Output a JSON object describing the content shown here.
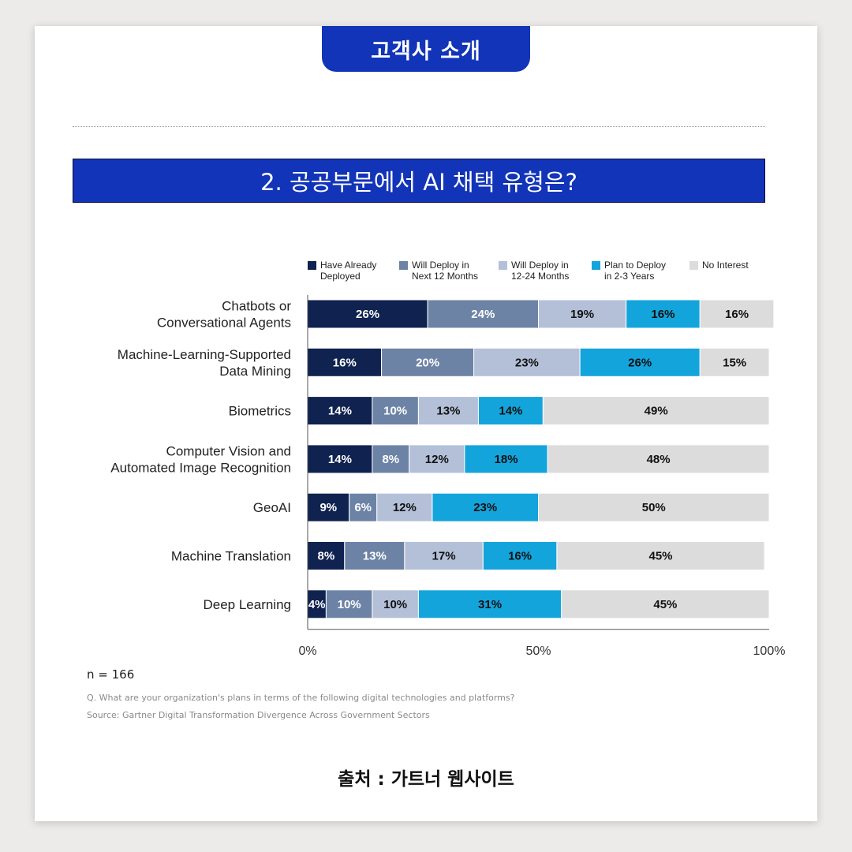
{
  "header": {
    "tab_label": "고객사 소개",
    "banner_title": "2. 공공부문에서 AI 채택 유형은?"
  },
  "chart_data": {
    "type": "bar",
    "orientation": "horizontal",
    "stacked": true,
    "categories": [
      "Chatbots or\nConversational Agents",
      "Machine-Learning-Supported\nData Mining",
      "Biometrics",
      "Computer Vision and\nAutomated Image Recognition",
      "GeoAI",
      "Machine Translation",
      "Deep Learning"
    ],
    "series": [
      {
        "name": "Have Already\nDeployed",
        "color": "#0f2250",
        "label_color": "#ffffff",
        "values": [
          26,
          16,
          14,
          14,
          9,
          8,
          4
        ]
      },
      {
        "name": "Will Deploy in\nNext 12 Months",
        "color": "#6d83a6",
        "label_color": "#ffffff",
        "values": [
          24,
          20,
          10,
          8,
          6,
          13,
          10
        ]
      },
      {
        "name": "Will Deploy in\n12-24 Months",
        "color": "#b3c0d8",
        "label_color": "#111111",
        "values": [
          19,
          23,
          13,
          12,
          12,
          17,
          10
        ]
      },
      {
        "name": "Plan to Deploy\nin 2-3 Years",
        "color": "#14a4dc",
        "label_color": "#111111",
        "values": [
          16,
          26,
          14,
          18,
          23,
          16,
          31
        ]
      },
      {
        "name": "No Interest",
        "color": "#dcdcdc",
        "label_color": "#111111",
        "values": [
          16,
          15,
          49,
          48,
          50,
          45,
          45
        ]
      }
    ],
    "xlim": [
      0,
      100
    ],
    "xticks": [
      "0%",
      "50%",
      "100%"
    ],
    "legend_position": "top",
    "n_label": "n = 166",
    "question": "Q. What are your organization's plans in terms of the following digital technologies and platforms?",
    "source": "Source: Gartner Digital Transformation Divergence Across Government Sectors"
  },
  "footer": {
    "credit": "출처 : 가트너 웹사이트"
  }
}
